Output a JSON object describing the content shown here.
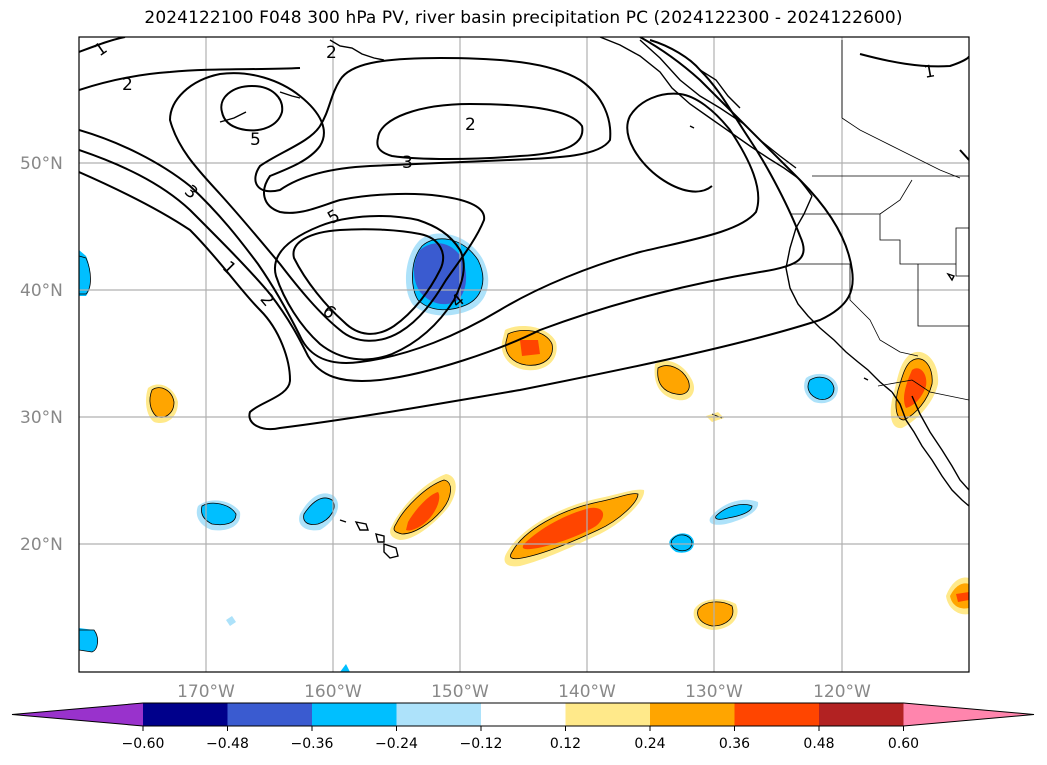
{
  "title": "2024122100 F048 300 hPa PV, river basin precipitation PC (2024122300 - 2024122600)",
  "map": {
    "lat_labels": [
      "50°N",
      "40°N",
      "30°N",
      "20°N"
    ],
    "lon_labels": [
      "170°W",
      "160°W",
      "150°W",
      "140°W",
      "130°W",
      "120°W"
    ],
    "gridline_color": "#b0b0b0",
    "coast_color": "#000000"
  },
  "pv_contour_labels": [
    "1",
    "2",
    "2",
    "5",
    "2",
    "3",
    "3",
    "5",
    "1",
    "2",
    "6",
    "4",
    "1"
  ],
  "colorbar": {
    "colors": [
      "#9932CC",
      "#00008B",
      "#3A5BD0",
      "#00BFFF",
      "#ADE2FA",
      "#FFFFFF",
      "#FFE98A",
      "#FFA500",
      "#FF4500",
      "#B22222",
      "#FF85AD"
    ],
    "ticks": [
      "−0.60",
      "−0.48",
      "−0.36",
      "−0.24",
      "−0.12",
      "0.12",
      "0.24",
      "0.36",
      "0.48",
      "0.60"
    ]
  }
}
